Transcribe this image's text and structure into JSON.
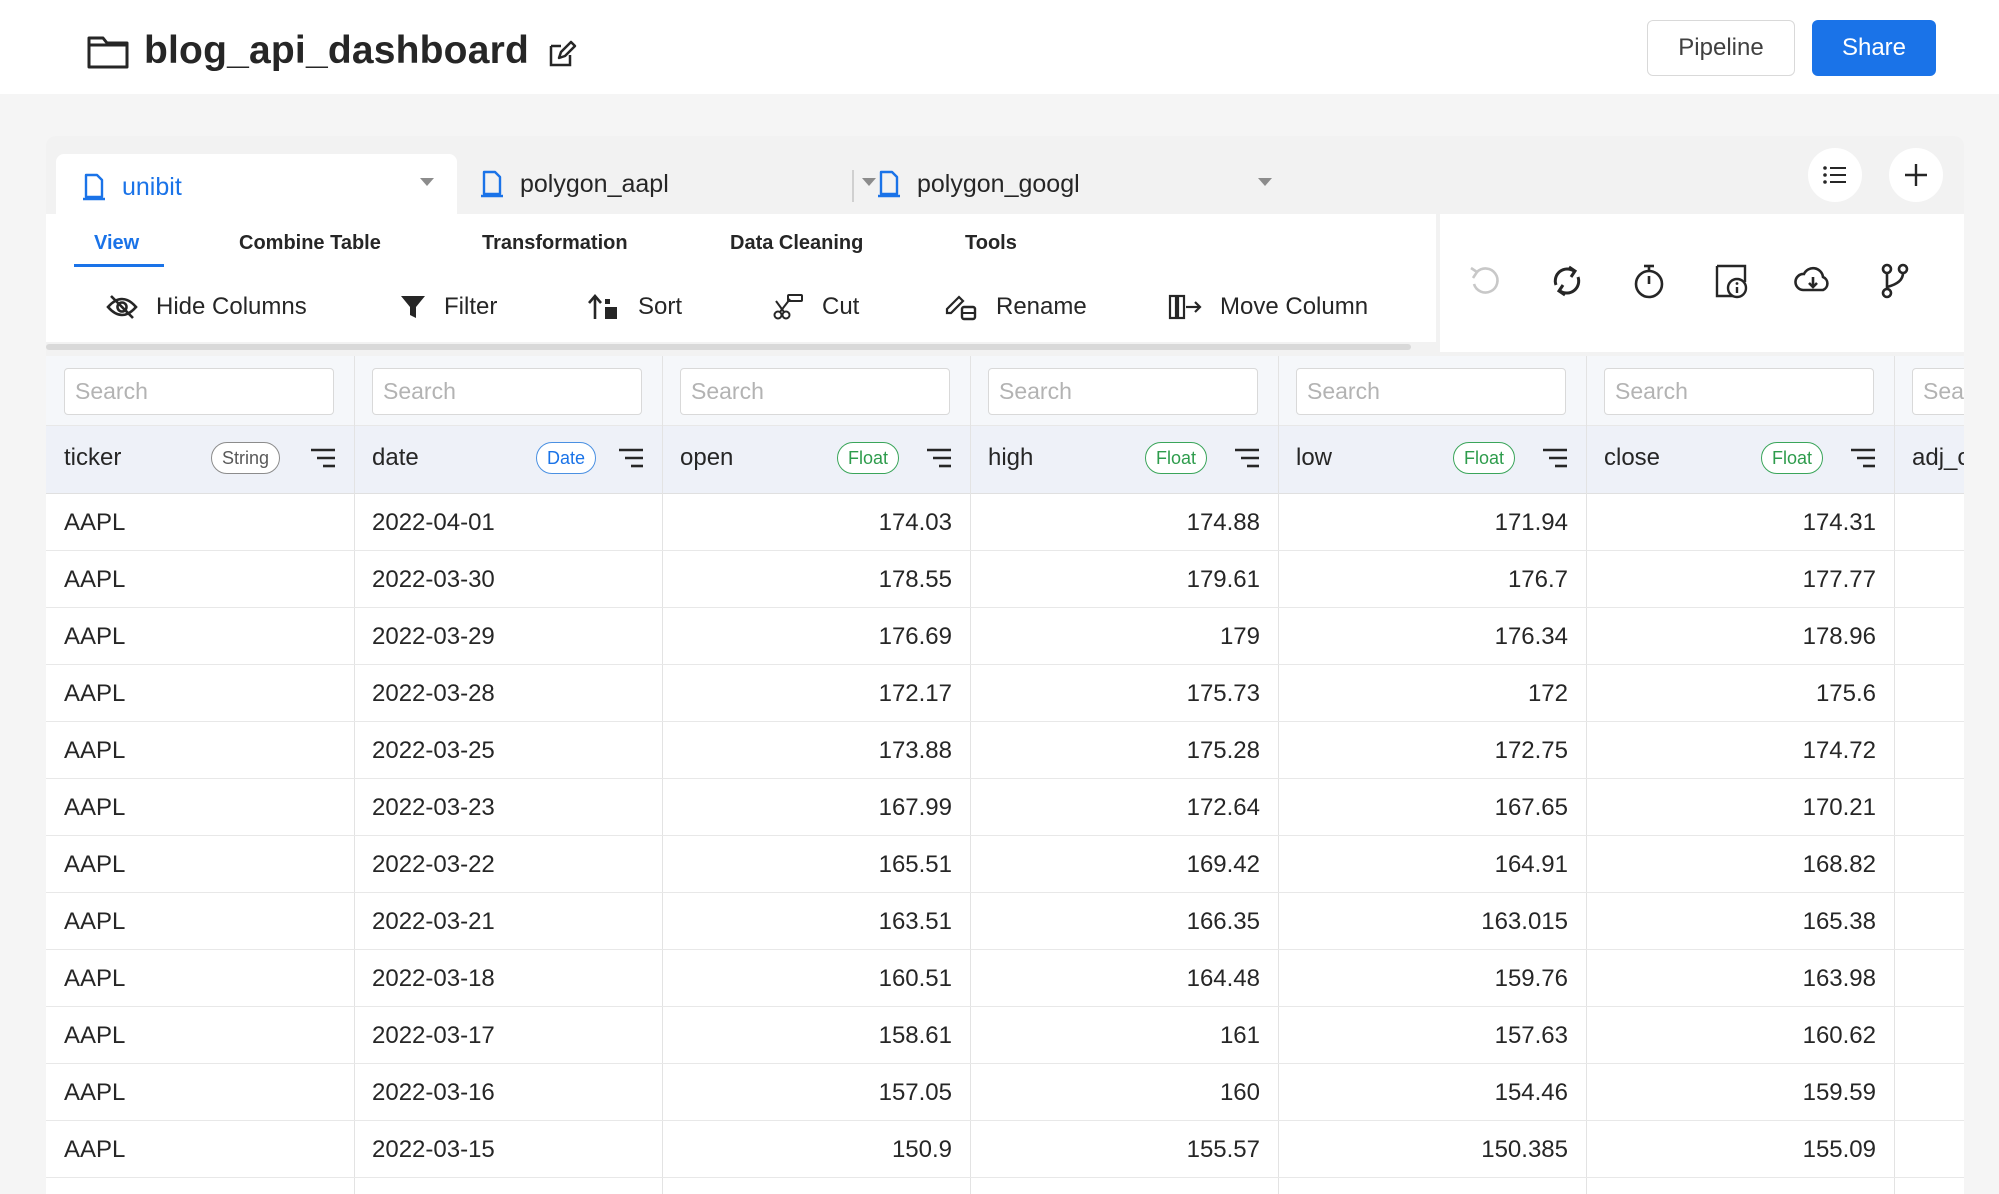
{
  "header": {
    "title": "blog_api_dashboard",
    "pipeline_label": "Pipeline",
    "share_label": "Share"
  },
  "source_tabs": [
    {
      "label": "unibit",
      "active": true
    },
    {
      "label": "polygon_aapl",
      "active": false
    },
    {
      "label": "polygon_googl",
      "active": false
    }
  ],
  "menu_tabs": [
    "View",
    "Combine Table",
    "Transformation",
    "Data Cleaning",
    "Tools"
  ],
  "tools": [
    "Hide Columns",
    "Filter",
    "Sort",
    "Cut",
    "Rename",
    "Move Column"
  ],
  "search_placeholder": "Search",
  "columns": [
    {
      "name": "ticker",
      "type": "String"
    },
    {
      "name": "date",
      "type": "Date"
    },
    {
      "name": "open",
      "type": "Float"
    },
    {
      "name": "high",
      "type": "Float"
    },
    {
      "name": "low",
      "type": "Float"
    },
    {
      "name": "close",
      "type": "Float"
    },
    {
      "name": "adj_c",
      "type": ""
    }
  ],
  "partial_search_placeholder": "Sea",
  "rows": [
    [
      "AAPL",
      "2022-04-01",
      "174.03",
      "174.88",
      "171.94",
      "174.31"
    ],
    [
      "AAPL",
      "2022-03-30",
      "178.55",
      "179.61",
      "176.7",
      "177.77"
    ],
    [
      "AAPL",
      "2022-03-29",
      "176.69",
      "179",
      "176.34",
      "178.96"
    ],
    [
      "AAPL",
      "2022-03-28",
      "172.17",
      "175.73",
      "172",
      "175.6"
    ],
    [
      "AAPL",
      "2022-03-25",
      "173.88",
      "175.28",
      "172.75",
      "174.72"
    ],
    [
      "AAPL",
      "2022-03-23",
      "167.99",
      "172.64",
      "167.65",
      "170.21"
    ],
    [
      "AAPL",
      "2022-03-22",
      "165.51",
      "169.42",
      "164.91",
      "168.82"
    ],
    [
      "AAPL",
      "2022-03-21",
      "163.51",
      "166.35",
      "163.015",
      "165.38"
    ],
    [
      "AAPL",
      "2022-03-18",
      "160.51",
      "164.48",
      "159.76",
      "163.98"
    ],
    [
      "AAPL",
      "2022-03-17",
      "158.61",
      "161",
      "157.63",
      "160.62"
    ],
    [
      "AAPL",
      "2022-03-16",
      "157.05",
      "160",
      "154.46",
      "159.59"
    ],
    [
      "AAPL",
      "2022-03-15",
      "150.9",
      "155.57",
      "150.385",
      "155.09"
    ]
  ],
  "colors": {
    "accent": "#1a73e8",
    "float_badge": "#2e9c4c",
    "date_badge": "#1a73e8",
    "string_badge": "#8c8c8c"
  },
  "icons": {
    "title": "folder-icon",
    "title_edit": "edit-icon",
    "tab": "file-icon",
    "list": "list-icon",
    "add": "plus-icon",
    "actions": [
      "undo-icon",
      "refresh-icon",
      "timer-icon",
      "info-icon",
      "cloud-download-icon",
      "branch-icon"
    ]
  }
}
